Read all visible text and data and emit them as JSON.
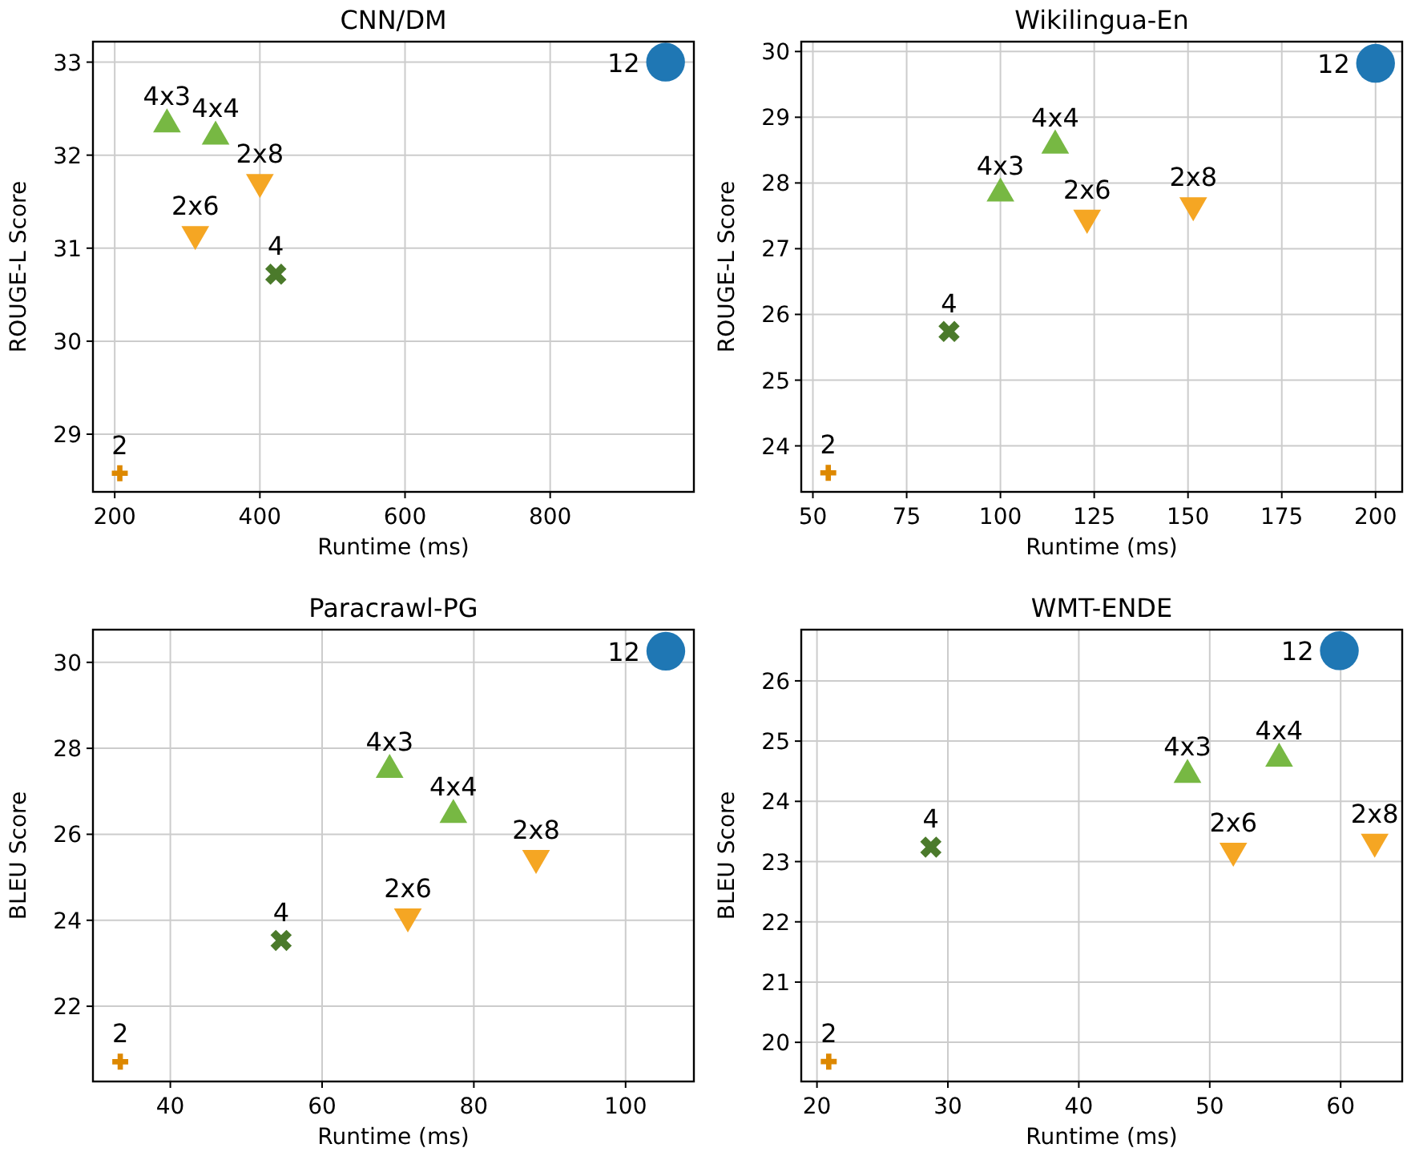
{
  "chart_data": [
    {
      "type": "scatter",
      "title": "CNN/DM",
      "xlabel": "Runtime (ms)",
      "ylabel": "ROUGE-L Score",
      "xlim": [
        170,
        998
      ],
      "ylim": [
        28.38,
        33.22
      ],
      "xticks": [
        200,
        400,
        600,
        800
      ],
      "yticks": [
        29,
        30,
        31,
        32,
        33
      ],
      "grid": true,
      "series": [
        {
          "name": "12",
          "color": "#1f77b4",
          "marker": "circle",
          "x": [
            959
          ],
          "values": [
            33.0
          ]
        },
        {
          "name": "4x3",
          "color": "#77b843",
          "marker": "triangle",
          "x": [
            272
          ],
          "values": [
            32.33
          ]
        },
        {
          "name": "4x4",
          "color": "#77b843",
          "marker": "triangle",
          "x": [
            339
          ],
          "values": [
            32.2
          ]
        },
        {
          "name": "2x6",
          "color": "#f5a623",
          "marker": "triangle-down",
          "x": [
            311
          ],
          "values": [
            31.15
          ]
        },
        {
          "name": "2x8",
          "color": "#f5a623",
          "marker": "triangle-down",
          "x": [
            400
          ],
          "values": [
            31.71
          ]
        },
        {
          "name": "4",
          "color": "#4b7a2b",
          "marker": "x",
          "x": [
            422
          ],
          "values": [
            30.72
          ]
        },
        {
          "name": "2",
          "color": "#dd8800",
          "marker": "plus",
          "x": [
            207
          ],
          "values": [
            28.58
          ]
        }
      ]
    },
    {
      "type": "scatter",
      "title": "Wikilingua-En",
      "xlabel": "Runtime (ms)",
      "ylabel": "ROUGE-L Score",
      "xlim": [
        46.9,
        207.1
      ],
      "ylim": [
        23.3,
        30.15
      ],
      "xticks": [
        50,
        75,
        100,
        125,
        150,
        175,
        200
      ],
      "yticks": [
        24,
        25,
        26,
        27,
        28,
        29,
        30
      ],
      "grid": true,
      "series": [
        {
          "name": "12",
          "color": "#1f77b4",
          "marker": "circle",
          "x": [
            200
          ],
          "values": [
            29.82
          ]
        },
        {
          "name": "4x3",
          "color": "#77b843",
          "marker": "triangle",
          "x": [
            100
          ],
          "values": [
            27.84
          ]
        },
        {
          "name": "4x4",
          "color": "#77b843",
          "marker": "triangle",
          "x": [
            114.6
          ],
          "values": [
            28.57
          ]
        },
        {
          "name": "2x6",
          "color": "#f5a623",
          "marker": "triangle-down",
          "x": [
            123.1
          ],
          "values": [
            27.47
          ]
        },
        {
          "name": "2x8",
          "color": "#f5a623",
          "marker": "triangle-down",
          "x": [
            151.4
          ],
          "values": [
            27.66
          ]
        },
        {
          "name": "4",
          "color": "#4b7a2b",
          "marker": "x",
          "x": [
            86.3
          ],
          "values": [
            25.74
          ]
        },
        {
          "name": "2",
          "color": "#dd8800",
          "marker": "plus",
          "x": [
            54.1
          ],
          "values": [
            23.59
          ]
        }
      ]
    },
    {
      "type": "scatter",
      "title": "Paracrawl-PG",
      "xlabel": "Runtime (ms)",
      "ylabel": "BLEU Score",
      "xlim": [
        29.8,
        109
      ],
      "ylim": [
        20.25,
        30.76
      ],
      "xticks": [
        40,
        60,
        80,
        100
      ],
      "yticks": [
        22,
        24,
        26,
        28,
        30
      ],
      "grid": true,
      "series": [
        {
          "name": "12",
          "color": "#1f77b4",
          "marker": "circle",
          "x": [
            105.3
          ],
          "values": [
            30.26
          ]
        },
        {
          "name": "4x3",
          "color": "#77b843",
          "marker": "triangle",
          "x": [
            68.9
          ],
          "values": [
            27.5
          ]
        },
        {
          "name": "4x4",
          "color": "#77b843",
          "marker": "triangle",
          "x": [
            77.3
          ],
          "values": [
            26.45
          ]
        },
        {
          "name": "2x6",
          "color": "#f5a623",
          "marker": "triangle-down",
          "x": [
            71.3
          ],
          "values": [
            24.09
          ]
        },
        {
          "name": "2x8",
          "color": "#f5a623",
          "marker": "triangle-down",
          "x": [
            88.2
          ],
          "values": [
            25.45
          ]
        },
        {
          "name": "4",
          "color": "#4b7a2b",
          "marker": "x",
          "x": [
            54.6
          ],
          "values": [
            23.53
          ]
        },
        {
          "name": "2",
          "color": "#dd8800",
          "marker": "plus",
          "x": [
            33.4
          ],
          "values": [
            20.71
          ]
        }
      ]
    },
    {
      "type": "scatter",
      "title": "WMT-ENDE",
      "xlabel": "Runtime (ms)",
      "ylabel": "BLEU Score",
      "xlim": [
        18.8,
        64.7
      ],
      "ylim": [
        19.35,
        26.85
      ],
      "xticks": [
        20,
        30,
        40,
        50,
        60
      ],
      "yticks": [
        20,
        21,
        22,
        23,
        24,
        25,
        26
      ],
      "grid": true,
      "series": [
        {
          "name": "12",
          "color": "#1f77b4",
          "marker": "circle",
          "x": [
            59.9
          ],
          "values": [
            26.5
          ]
        },
        {
          "name": "4x3",
          "color": "#77b843",
          "marker": "triangle",
          "x": [
            48.3
          ],
          "values": [
            24.44
          ]
        },
        {
          "name": "4x4",
          "color": "#77b843",
          "marker": "triangle",
          "x": [
            55.3
          ],
          "values": [
            24.71
          ]
        },
        {
          "name": "2x6",
          "color": "#f5a623",
          "marker": "triangle-down",
          "x": [
            51.8
          ],
          "values": [
            23.18
          ]
        },
        {
          "name": "2x8",
          "color": "#f5a623",
          "marker": "triangle-down",
          "x": [
            62.6
          ],
          "values": [
            23.33
          ]
        },
        {
          "name": "4",
          "color": "#4b7a2b",
          "marker": "x",
          "x": [
            28.7
          ],
          "values": [
            23.24
          ]
        },
        {
          "name": "2",
          "color": "#dd8800",
          "marker": "plus",
          "x": [
            20.9
          ],
          "values": [
            19.68
          ]
        }
      ]
    }
  ]
}
